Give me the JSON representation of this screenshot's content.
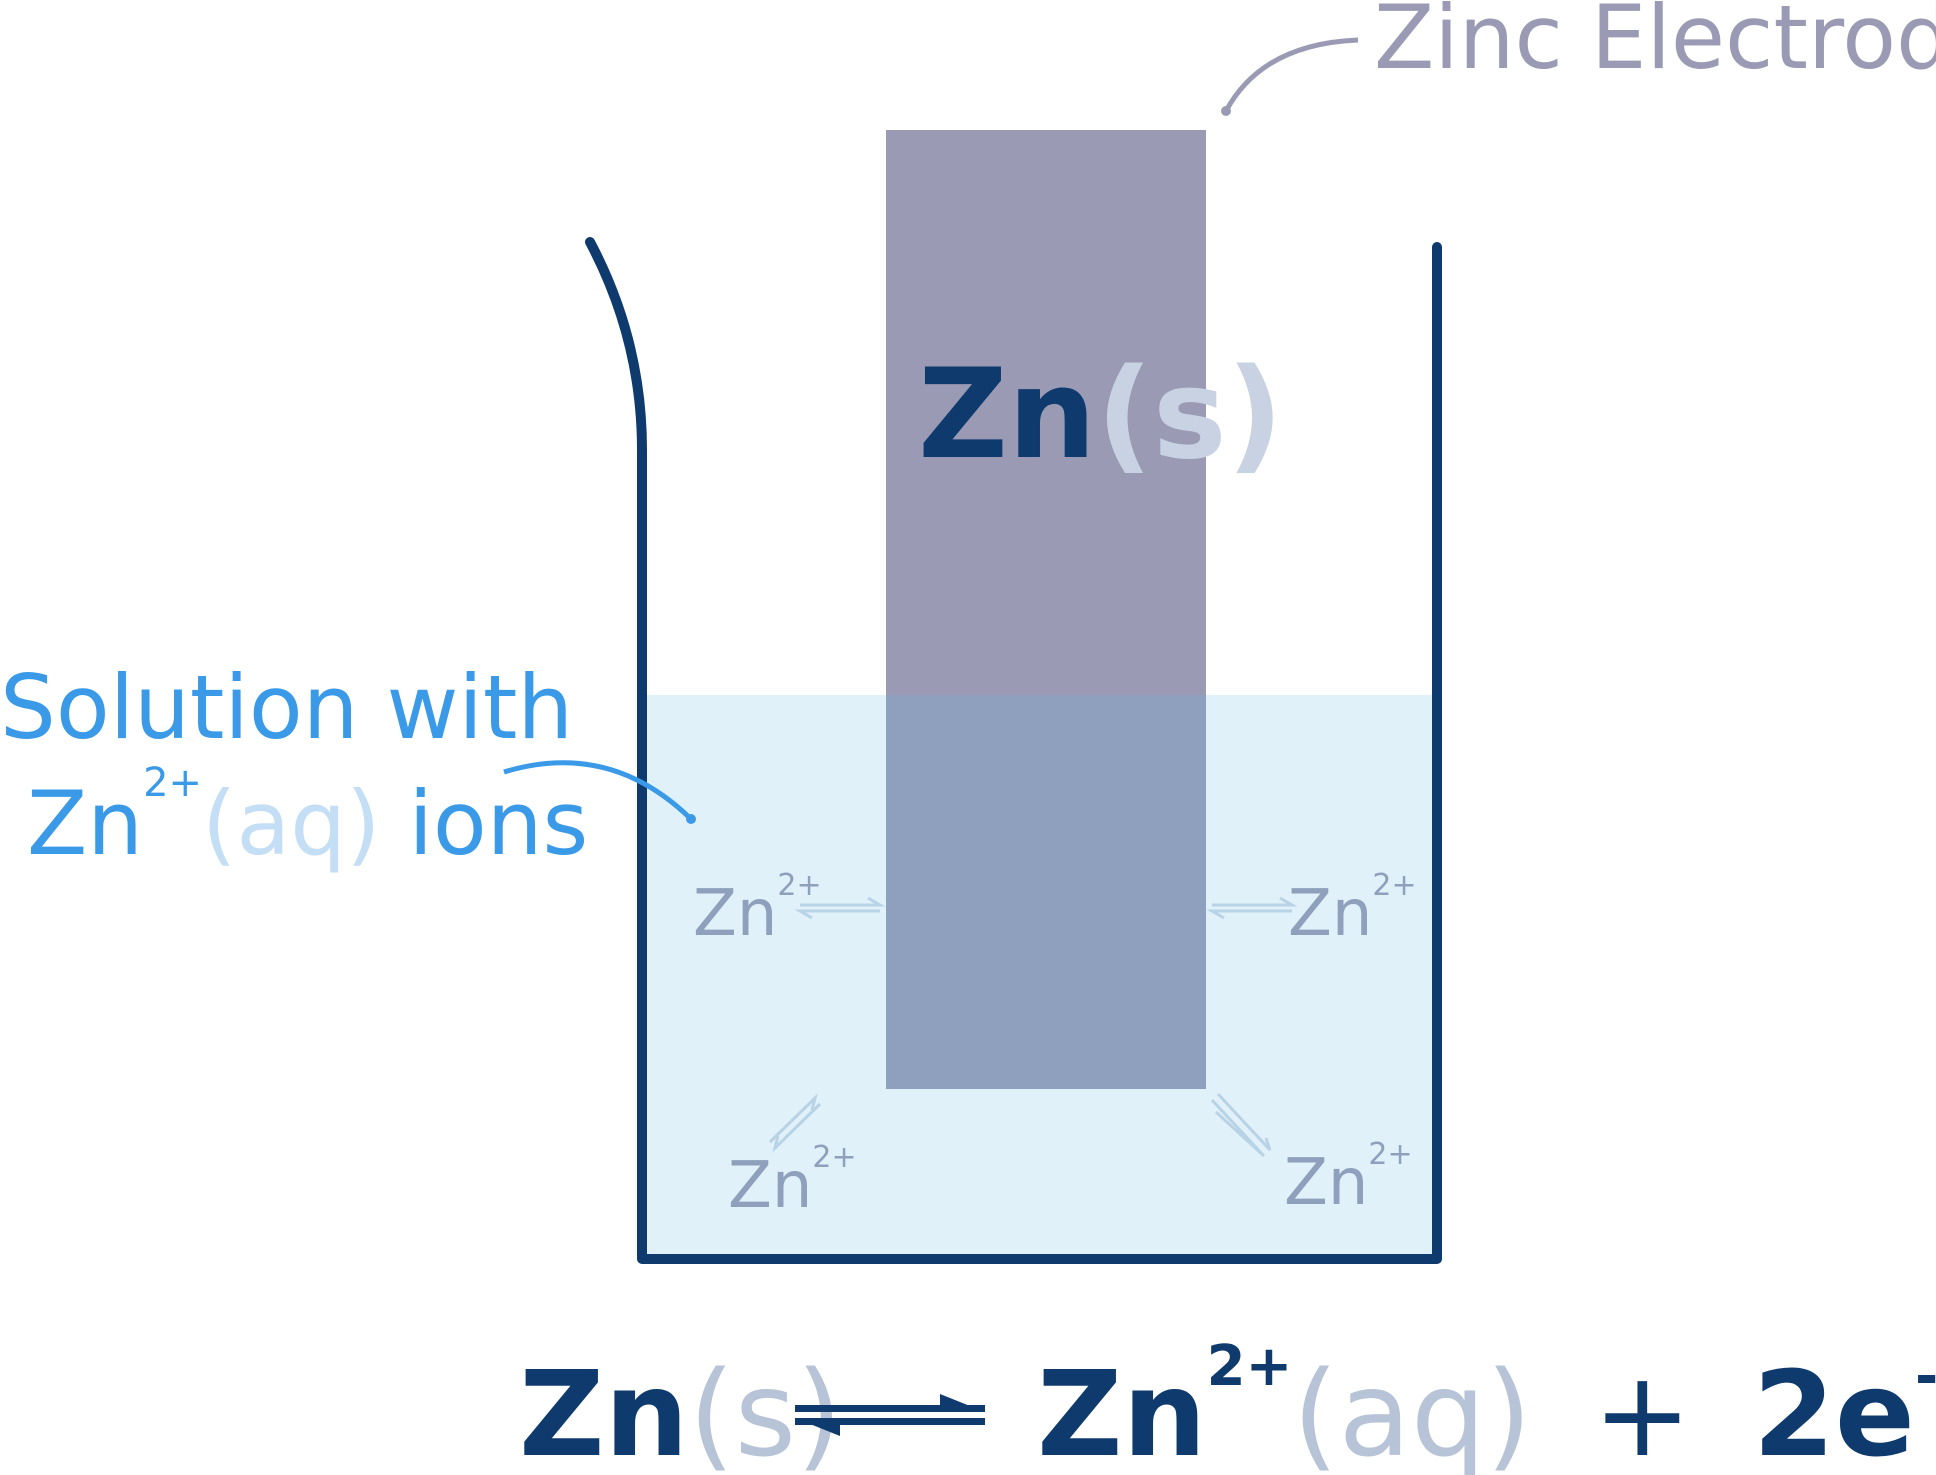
{
  "labels": {
    "electrode": "Zinc Electrode",
    "solution_line1": "Solution with",
    "solution_zn": "Zn",
    "solution_charge": "2+",
    "solution_state": "(aq)",
    "solution_ions": " ions",
    "electrode_symbol": "Zn",
    "electrode_state": "(s)"
  },
  "ions": [
    {
      "symbol": "Zn",
      "charge": "2+"
    },
    {
      "symbol": "Zn",
      "charge": "2+"
    },
    {
      "symbol": "Zn",
      "charge": "2+"
    },
    {
      "symbol": "Zn",
      "charge": "2+"
    }
  ],
  "equation": {
    "reactant": "Zn",
    "reactant_state": "(s)",
    "product": "Zn",
    "product_charge": "2+",
    "product_state": "(aq)",
    "plus": "+",
    "electrons": "2e",
    "electron_charge": "-"
  },
  "colors": {
    "beaker": "#0e3a6e",
    "solution": "#e1f1fa",
    "electrode": "#9a9ab4",
    "electrode_submerged": "#8ea0bd",
    "solution_label": "#3b9ae8",
    "electrode_label": "#9a9ab4"
  }
}
